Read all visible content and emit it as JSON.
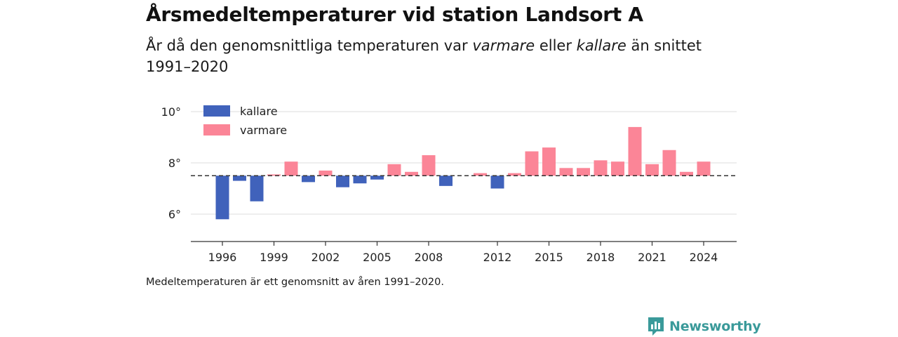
{
  "header": {
    "title": "Årsmedeltemperaturer vid station Landsort A",
    "subtitle_part1": "År då den genomsnittliga temperaturen var ",
    "subtitle_em1": "varmare",
    "subtitle_part2": " eller ",
    "subtitle_em2": "kallare",
    "subtitle_part3": " än snittet 1991–2020"
  },
  "footnote": "Medeltemperaturen är ett genomsnitt av åren 1991–2020.",
  "brand": {
    "name": "Newsworthy",
    "icon": "newsworthy-logo-icon",
    "color": "#3a9a9a"
  },
  "chart_data": {
    "type": "bar",
    "baseline": 7.5,
    "ylim": [
      5,
      10.5
    ],
    "y_ticks": [
      6,
      8,
      10
    ],
    "y_tick_labels": [
      "6°",
      "8°",
      "10°"
    ],
    "x_ticks": [
      1996,
      1999,
      2002,
      2005,
      2008,
      2012,
      2015,
      2018,
      2021,
      2024
    ],
    "x_tick_labels": [
      "1996",
      "1999",
      "2002",
      "2005",
      "2008",
      "2012",
      "2015",
      "2018",
      "2021",
      "2024"
    ],
    "colors": {
      "kallare": "#4062bb",
      "varmare": "#fb8597",
      "baseline": "#333333",
      "grid": "#dddddd"
    },
    "legend": {
      "position": "top-left",
      "entries": [
        "kallare",
        "varmare"
      ]
    },
    "categories": [
      1996,
      1997,
      1998,
      1999,
      2000,
      2001,
      2002,
      2003,
      2004,
      2005,
      2006,
      2007,
      2008,
      2009,
      2010,
      2011,
      2012,
      2013,
      2014,
      2015,
      2016,
      2017,
      2018,
      2019,
      2020,
      2021,
      2022,
      2023,
      2024
    ],
    "values": [
      5.8,
      7.3,
      6.5,
      7.55,
      8.05,
      7.25,
      7.7,
      7.05,
      7.2,
      7.35,
      7.95,
      7.65,
      8.3,
      7.1,
      null,
      7.6,
      7.0,
      7.6,
      8.45,
      8.6,
      7.8,
      7.8,
      8.1,
      8.05,
      9.4,
      7.95,
      8.5,
      7.65,
      8.05
    ]
  }
}
